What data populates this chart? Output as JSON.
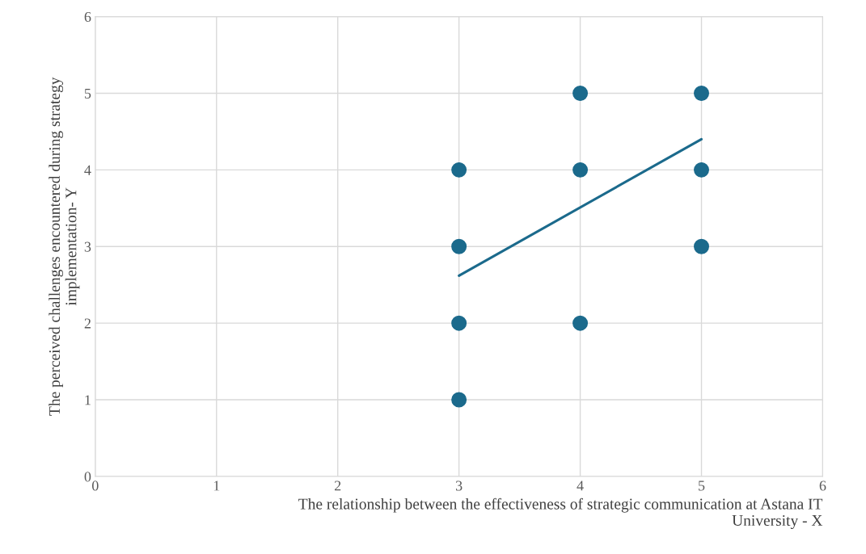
{
  "chart_data": {
    "type": "scatter",
    "xlabel": "The relationship between the effectiveness of strategic communication at Astana IT\nUniversity - X",
    "ylabel": "The perceived challenges encountered during strategy\nimplementation- Y",
    "series": [
      {
        "color": "#1b6a8c",
        "marker": "circle",
        "x": [
          3,
          3,
          3,
          3,
          4,
          4,
          4,
          5,
          5,
          5
        ],
        "values": [
          4,
          3,
          2,
          1,
          5,
          4,
          2,
          5,
          4,
          3
        ]
      },
      {
        "type": "line",
        "color": "#1b6a8c",
        "marker": "none",
        "line_style": "solid",
        "x": [
          3,
          5
        ],
        "values": [
          2.62,
          4.4
        ]
      }
    ],
    "xlim": [
      0,
      6
    ],
    "ylim": [
      0,
      6
    ],
    "xticks": [
      0,
      1,
      2,
      3,
      4,
      5,
      6
    ],
    "yticks": [
      0,
      1,
      2,
      3,
      4,
      5,
      6
    ],
    "grid": true
  }
}
